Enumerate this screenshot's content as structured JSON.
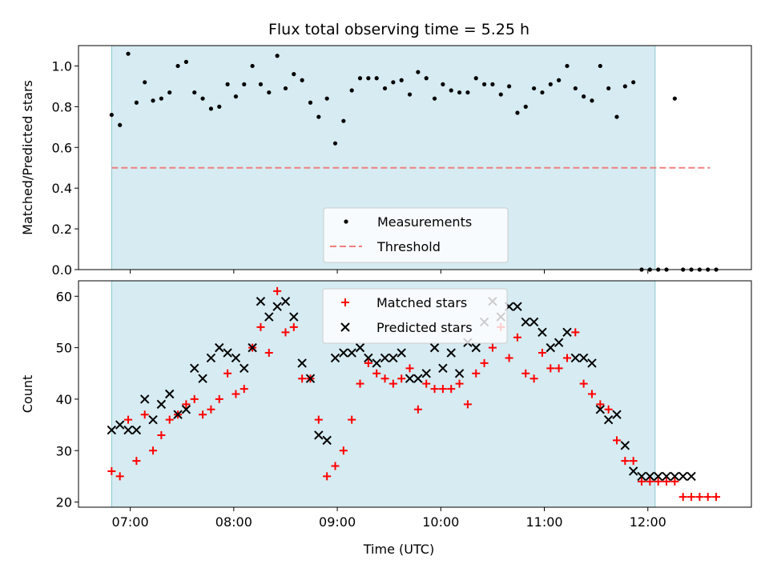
{
  "chart_data": [
    {
      "type": "scatter",
      "title": "Flux total observing time = 5.25 h",
      "ylabel": "Matched/Predicted stars",
      "xlabel": "",
      "xlim": [
        6.5,
        13.0
      ],
      "ylim": [
        0.0,
        1.1
      ],
      "yticks": [
        0.0,
        0.2,
        0.4,
        0.6,
        0.8,
        1.0
      ],
      "ytick_labels": [
        "0.0",
        "0.2",
        "0.4",
        "0.6",
        "0.8",
        "1.0"
      ],
      "xticks": [
        7,
        8,
        9,
        10,
        11,
        12
      ],
      "shaded_span": [
        6.82,
        12.07
      ],
      "legend_position": "lower center",
      "series": [
        {
          "name": "Measurements",
          "marker": "dot",
          "color": "#000000",
          "x": [
            6.82,
            6.9,
            6.98,
            7.06,
            7.14,
            7.22,
            7.3,
            7.38,
            7.46,
            7.54,
            7.62,
            7.7,
            7.78,
            7.86,
            7.94,
            8.02,
            8.1,
            8.18,
            8.26,
            8.34,
            8.42,
            8.5,
            8.58,
            8.66,
            8.74,
            8.82,
            8.9,
            8.98,
            9.06,
            9.14,
            9.22,
            9.3,
            9.38,
            9.46,
            9.54,
            9.62,
            9.7,
            9.78,
            9.86,
            9.94,
            10.02,
            10.1,
            10.18,
            10.26,
            10.34,
            10.42,
            10.5,
            10.58,
            10.66,
            10.74,
            10.82,
            10.9,
            10.98,
            11.06,
            11.14,
            11.22,
            11.3,
            11.38,
            11.46,
            11.54,
            11.62,
            11.7,
            11.78,
            11.86,
            11.94,
            12.02,
            12.1,
            12.18,
            12.26,
            12.34,
            12.42,
            12.5,
            12.58,
            12.66
          ],
          "y": [
            0.76,
            0.71,
            1.06,
            0.82,
            0.92,
            0.83,
            0.84,
            0.87,
            1.0,
            1.02,
            0.87,
            0.84,
            0.79,
            0.8,
            0.91,
            0.85,
            0.91,
            1.0,
            0.91,
            0.87,
            1.05,
            0.89,
            0.96,
            0.93,
            0.82,
            0.75,
            0.84,
            0.62,
            0.73,
            0.88,
            0.94,
            0.94,
            0.94,
            0.89,
            0.92,
            0.93,
            0.86,
            0.97,
            0.94,
            0.84,
            0.91,
            0.88,
            0.87,
            0.87,
            0.94,
            0.91,
            0.91,
            0.86,
            0.9,
            0.77,
            0.8,
            0.89,
            0.87,
            0.91,
            0.93,
            1.0,
            0.89,
            0.85,
            0.83,
            1.0,
            0.89,
            0.75,
            0.9,
            0.92,
            0.0,
            0.0,
            0.0,
            0.0,
            0.84,
            0.0,
            0.0,
            0.0,
            0.0,
            0.0
          ]
        },
        {
          "name": "Threshold",
          "style": "dashed",
          "color": "#f08080",
          "x": [
            6.82,
            12.6
          ],
          "y": [
            0.5,
            0.5
          ]
        }
      ]
    },
    {
      "type": "scatter",
      "title": "",
      "ylabel": "Count",
      "xlabel": "Time (UTC)",
      "xlim": [
        6.5,
        13.0
      ],
      "ylim": [
        19.0,
        63.0
      ],
      "yticks": [
        20,
        30,
        40,
        50,
        60
      ],
      "ytick_labels": [
        "20",
        "30",
        "40",
        "50",
        "60"
      ],
      "xticks": [
        7,
        8,
        9,
        10,
        11,
        12
      ],
      "xtick_labels": [
        "07:00",
        "08:00",
        "09:00",
        "10:00",
        "11:00",
        "12:00"
      ],
      "shaded_span": [
        6.82,
        12.07
      ],
      "legend_position": "top center",
      "series": [
        {
          "name": "Matched stars",
          "marker": "plus",
          "color": "#ff0000",
          "x": [
            6.82,
            6.9,
            6.98,
            7.06,
            7.14,
            7.22,
            7.3,
            7.38,
            7.46,
            7.54,
            7.62,
            7.7,
            7.78,
            7.86,
            7.94,
            8.02,
            8.1,
            8.18,
            8.26,
            8.34,
            8.42,
            8.5,
            8.58,
            8.66,
            8.74,
            8.82,
            8.9,
            8.98,
            9.06,
            9.14,
            9.22,
            9.3,
            9.38,
            9.46,
            9.54,
            9.62,
            9.7,
            9.78,
            9.86,
            9.94,
            10.02,
            10.1,
            10.18,
            10.26,
            10.34,
            10.42,
            10.5,
            10.58,
            10.66,
            10.74,
            10.82,
            10.9,
            10.98,
            11.06,
            11.14,
            11.22,
            11.3,
            11.38,
            11.46,
            11.54,
            11.62,
            11.7,
            11.78,
            11.86,
            11.94,
            12.02,
            12.1,
            12.18,
            12.26,
            12.34,
            12.42,
            12.5,
            12.58,
            12.66
          ],
          "y": [
            26,
            25,
            36,
            28,
            37,
            30,
            33,
            36,
            37,
            39,
            40,
            37,
            38,
            40,
            45,
            41,
            42,
            50,
            54,
            49,
            61,
            53,
            54,
            44,
            44,
            36,
            25,
            27,
            30,
            36,
            43,
            47,
            45,
            44,
            43,
            44,
            46,
            38,
            43,
            42,
            42,
            42,
            43,
            39,
            45,
            47,
            50,
            54,
            48,
            52,
            45,
            44,
            49,
            46,
            46,
            48,
            53,
            43,
            41,
            39,
            38,
            32,
            28,
            28,
            24,
            24,
            24,
            24,
            24,
            21,
            21,
            21,
            21,
            21
          ]
        },
        {
          "name": "Predicted stars",
          "marker": "x",
          "color": "#000000",
          "x": [
            6.82,
            6.9,
            6.98,
            7.06,
            7.14,
            7.22,
            7.3,
            7.38,
            7.46,
            7.54,
            7.62,
            7.7,
            7.78,
            7.86,
            7.94,
            8.02,
            8.1,
            8.18,
            8.26,
            8.34,
            8.42,
            8.5,
            8.58,
            8.66,
            8.74,
            8.82,
            8.9,
            8.98,
            9.06,
            9.14,
            9.22,
            9.3,
            9.38,
            9.46,
            9.54,
            9.62,
            9.7,
            9.78,
            9.86,
            9.94,
            10.02,
            10.1,
            10.18,
            10.26,
            10.34,
            10.42,
            10.5,
            10.58,
            10.66,
            10.74,
            10.82,
            10.9,
            10.98,
            11.06,
            11.14,
            11.22,
            11.3,
            11.38,
            11.46,
            11.54,
            11.62,
            11.7,
            11.78,
            11.86,
            11.94,
            12.02,
            12.1,
            12.18,
            12.26,
            12.34,
            12.42
          ],
          "y": [
            34,
            35,
            34,
            34,
            40,
            36,
            39,
            41,
            37,
            38,
            46,
            44,
            48,
            50,
            49,
            48,
            46,
            50,
            59,
            56,
            58,
            59,
            56,
            47,
            44,
            33,
            32,
            48,
            49,
            49,
            50,
            48,
            47,
            48,
            48,
            49,
            44,
            44,
            45,
            50,
            46,
            49,
            45,
            51,
            50,
            55,
            59,
            56,
            58,
            58,
            55,
            55,
            53,
            50,
            51,
            53,
            48,
            48,
            47,
            38,
            36,
            37,
            31,
            26,
            25,
            25,
            25,
            25,
            25,
            25,
            25
          ]
        }
      ]
    }
  ]
}
